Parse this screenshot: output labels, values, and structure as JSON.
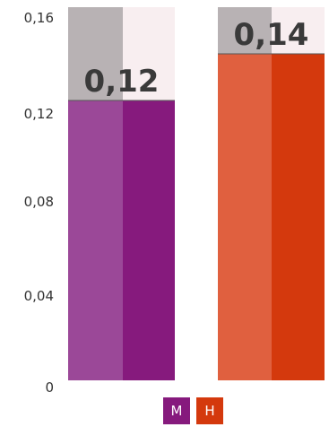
{
  "chart_data": {
    "type": "bar",
    "ylim": [
      0,
      0.16
    ],
    "y_ticks": [
      "0",
      "0,04",
      "0,08",
      "0,12",
      "0,16"
    ],
    "y_tick_values": [
      0,
      0.04,
      0.08,
      0.12,
      0.16
    ],
    "bars": [
      {
        "value": 0.12,
        "label": "0,12",
        "left_color": "#9b4898",
        "right_color": "#861a7d",
        "bg_left_color": "#b8b2b4",
        "bg_right_color": "#f8eef0"
      },
      {
        "value": 0.14,
        "label": "0,14",
        "left_color": "#e0603f",
        "right_color": "#d4390d",
        "bg_left_color": "#b8b2b4",
        "bg_right_color": "#f8eef0"
      }
    ],
    "legend": [
      {
        "label": "M",
        "color": "#861a7d"
      },
      {
        "label": "H",
        "color": "#d4390d"
      }
    ]
  }
}
